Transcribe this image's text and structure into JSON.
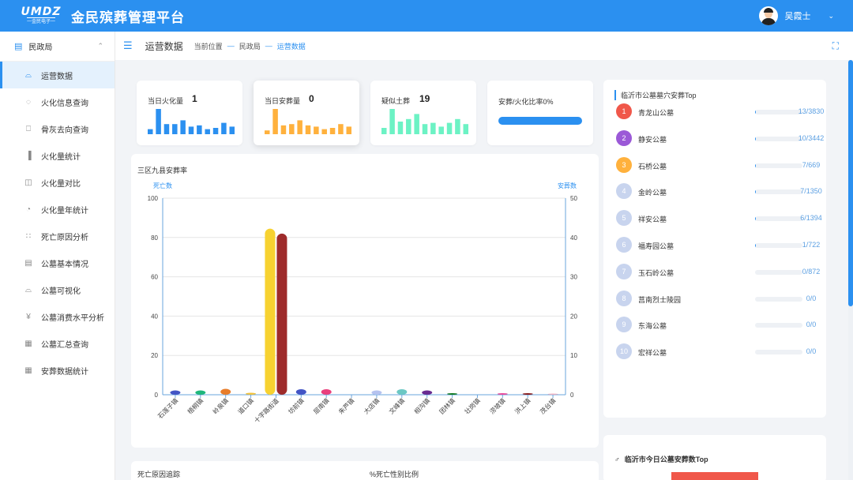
{
  "header": {
    "logo_text": "UMDZ",
    "logo_sub": "一金民电子一",
    "title": "金民殡葬管理平台",
    "user_name": "吴霞士"
  },
  "sidebar": {
    "section_label": "民政局",
    "items": [
      {
        "label": "运营数据",
        "icon": "line-chart-icon",
        "active": true
      },
      {
        "label": "火化信息查询",
        "icon": "flame-icon",
        "active": false
      },
      {
        "label": "骨灰去向查询",
        "icon": "urn-icon",
        "active": false
      },
      {
        "label": "火化量统计",
        "icon": "bar-chart-icon",
        "active": false
      },
      {
        "label": "火化量对比",
        "icon": "compare-icon",
        "active": false
      },
      {
        "label": "火化量年统计",
        "icon": "pie-chart-icon",
        "active": false
      },
      {
        "label": "死亡原因分析",
        "icon": "scatter-icon",
        "active": false
      },
      {
        "label": "公墓基本情况",
        "icon": "document-icon",
        "active": false
      },
      {
        "label": "公墓可视化",
        "icon": "line-chart-icon",
        "active": false
      },
      {
        "label": "公墓消费水平分析",
        "icon": "yen-icon",
        "active": false
      },
      {
        "label": "公墓汇总查询",
        "icon": "table-icon",
        "active": false
      },
      {
        "label": "安葬数据统计",
        "icon": "table-icon",
        "active": false
      }
    ]
  },
  "breadcrumb": {
    "page_title": "运营数据",
    "location_label": "当前位置",
    "level1": "民政局",
    "level2": "运营数据"
  },
  "stats": {
    "cremation": {
      "label": "当日火化量",
      "value": "1",
      "color": "#2b90f0",
      "bars": [
        4,
        20,
        8,
        8,
        11,
        6,
        7,
        4,
        5,
        9,
        6
      ]
    },
    "burial": {
      "label": "当日安葬量",
      "value": "0",
      "color": "#ffb13d",
      "bars": [
        3,
        20,
        7,
        8,
        11,
        7,
        6,
        4,
        5,
        8,
        6
      ]
    },
    "suspected": {
      "label": "疑似土葬",
      "value": "19",
      "color": "#6cf2c4",
      "bars": [
        5,
        20,
        10,
        12,
        16,
        8,
        9,
        6,
        9,
        12,
        8
      ]
    },
    "ratio": {
      "label": "安葬/火化比率0%",
      "value": 0,
      "color": "#2b90f0"
    }
  },
  "chart_data": {
    "type": "bar",
    "title": "三区九县安葬率",
    "y_left_label": "死亡数",
    "y_right_label": "安葬数",
    "ylim_left": [
      0,
      100
    ],
    "ylim_right": [
      0,
      50
    ],
    "left_ticks": [
      0,
      20,
      40,
      60,
      80,
      100
    ],
    "right_ticks": [
      0,
      10,
      20,
      30,
      40,
      50
    ],
    "categories": [
      "石莲子镇",
      "梧桐镇",
      "岭泉镇",
      "道口镇",
      "十字路街道",
      "坊前镇",
      "层南镇",
      "朱芦镇",
      "大店镇",
      "文峰镇",
      "相沟镇",
      "团林镇",
      "壮岗镇",
      "涝坡镇",
      "洪上镇",
      "茂台镇"
    ],
    "series": [
      {
        "axis": "left",
        "values": [
          2.2,
          2.2,
          3.0,
          1.0,
          84.5,
          2.8,
          2.8,
          0,
          2.2,
          2.8,
          2.2,
          0.8,
          0,
          0.8,
          0.8,
          0.6
        ]
      },
      {
        "axis": "right",
        "values": [
          0,
          0,
          0,
          0,
          41,
          0,
          0,
          0,
          0,
          0,
          0,
          0,
          0,
          0,
          0,
          0
        ]
      }
    ],
    "bar_colors": [
      "#4254c5",
      "#1fb77c",
      "#e87d2a",
      "#f2c23b",
      "#f7d231",
      "#4254c5",
      "#ea3f7d",
      "#999999",
      "#b6c3ef",
      "#6cc8c4",
      "#6a2c91",
      "#117a25",
      "#777777",
      "#e84a9b",
      "#8b1f1f",
      "#f4b2bf"
    ],
    "right_series_color": "#9e2b2b",
    "grid": true
  },
  "bottom": {
    "left_title": "死亡原因追踪",
    "right_title": "%死亡性别比例"
  },
  "ranking": {
    "title": "临沂市公墓墓穴安葬Top",
    "items": [
      {
        "rank": "1",
        "name": "青龙山公墓",
        "value": "13/3830",
        "ratio": 0.0034,
        "color": "#f0574a"
      },
      {
        "rank": "2",
        "name": "静安公墓",
        "value": "10/3442",
        "ratio": 0.0029,
        "color": "#9b59d7"
      },
      {
        "rank": "3",
        "name": "石桥公墓",
        "value": "7/669",
        "ratio": 0.0105,
        "color": "#ffb13d"
      },
      {
        "rank": "4",
        "name": "金岭公墓",
        "value": "7/1350",
        "ratio": 0.0052,
        "color": "#c8d4ee"
      },
      {
        "rank": "5",
        "name": "祥安公墓",
        "value": "6/1394",
        "ratio": 0.0043,
        "color": "#c8d4ee"
      },
      {
        "rank": "6",
        "name": "福寿园公墓",
        "value": "1/722",
        "ratio": 0.0014,
        "color": "#c8d4ee"
      },
      {
        "rank": "7",
        "name": "玉石岭公墓",
        "value": "0/872",
        "ratio": 0,
        "color": "#c8d4ee"
      },
      {
        "rank": "8",
        "name": "莒南烈士陵园",
        "value": "0/0",
        "ratio": 0,
        "color": "#c8d4ee"
      },
      {
        "rank": "9",
        "name": "东海公墓",
        "value": "0/0",
        "ratio": 0,
        "color": "#c8d4ee"
      },
      {
        "rank": "10",
        "name": "宏祥公墓",
        "value": "0/0",
        "ratio": 0,
        "color": "#c8d4ee"
      }
    ]
  },
  "ranking2": {
    "title": "临沂市今日公墓安葬数Top"
  }
}
